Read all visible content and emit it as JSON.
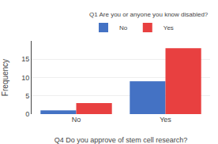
{
  "chart_data": {
    "type": "bar",
    "xlabel": "Q4 Do you approve of stem cell research?",
    "ylabel": "Frequency",
    "categories": [
      "No",
      "Yes"
    ],
    "series": [
      {
        "name": "No",
        "color": "#4472C4",
        "values": [
          1,
          9
        ]
      },
      {
        "name": "Yes",
        "color": "#E84040",
        "values": [
          3,
          18
        ]
      }
    ],
    "legend_title": "Q1 Are you or anyone you know disabled?",
    "legend": "upper right",
    "ylim": [
      0,
      20
    ],
    "yticks": [
      0,
      5,
      10,
      15
    ],
    "grid": true
  }
}
